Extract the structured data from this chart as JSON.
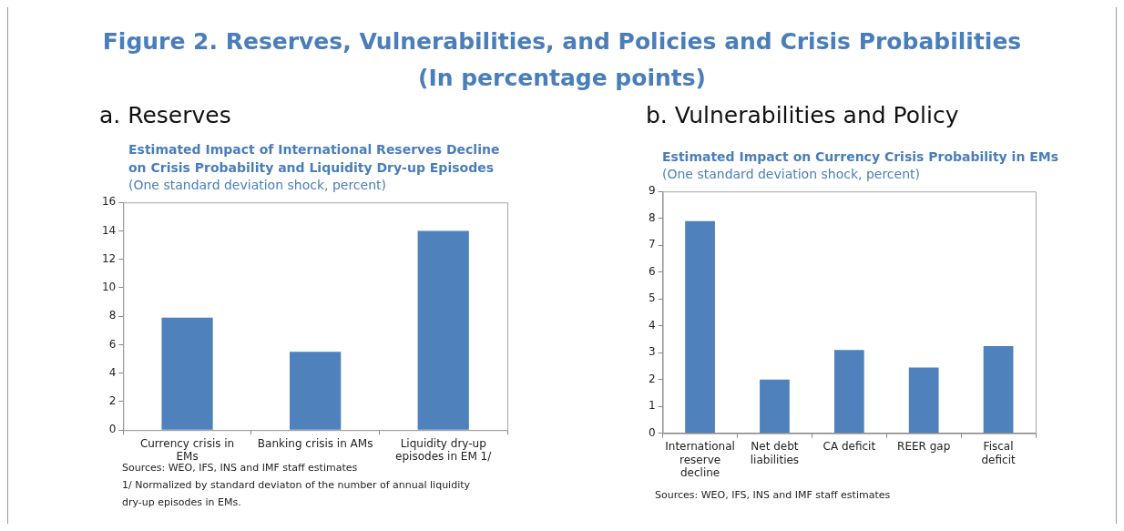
{
  "chart_data": [
    {
      "type": "bar",
      "title": "a. Reserves",
      "subtitle": "Estimated Impact of International Reserves Decline on Crisis Probability and Liquidity Dry-up Episodes",
      "annotations": [
        "Figure 2. Reserves, Vulnerabilities, and Policies and Crisis Probabilities",
        "(In percentage points)",
        "(One standard deviation shock, percent)",
        "Sources: WEO, IFS, INS and IMF staff estimates",
        "1/ Normalized by standard deviaton of the number  of annual liquidity dry-up episodes in EMs."
      ],
      "categories": [
        "Currency crisis in EMs",
        "Banking crisis in AMs",
        "Liquidity dry-up episodes in EM 1/"
      ],
      "values": [
        7.9,
        5.5,
        14.0
      ],
      "color": "#4f81bd",
      "ylim": [
        0,
        16
      ],
      "yticks": [
        0,
        2,
        4,
        6,
        8,
        10,
        12,
        14,
        16
      ],
      "grid": false,
      "legend": false
    },
    {
      "type": "bar",
      "title": "b. Vulnerabilities and Policy",
      "subtitle": "Estimated Impact on Currency Crisis Probability in EMs",
      "annotations": [
        "(One standard deviation shock, percent)",
        "Sources: WEO, IFS, INS and IMF staff estimates"
      ],
      "categories": [
        "International reserve decline",
        "Net debt liabilities",
        "CA deficit",
        "REER gap",
        "Fiscal deficit"
      ],
      "values": [
        7.9,
        2.0,
        3.1,
        2.45,
        3.25
      ],
      "color": "#4f81bd",
      "ylim": [
        0,
        9
      ],
      "yticks": [
        0,
        1,
        2,
        3,
        4,
        5,
        6,
        7,
        8,
        9
      ],
      "grid": false,
      "legend": false
    }
  ]
}
